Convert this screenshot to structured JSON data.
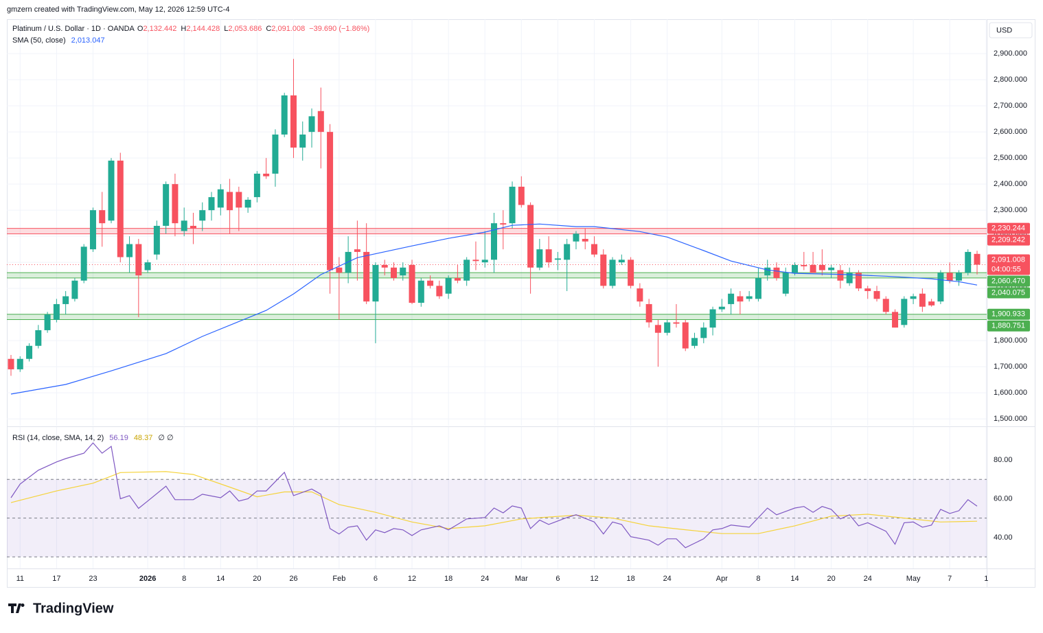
{
  "header": {
    "credit": "gmzern created with TradingView.com, May 12, 2026 12:59 UTC-4"
  },
  "chart_data": {
    "type": "candlestick",
    "title": "Platinum / U.S. Dollar · 1D · OANDA",
    "ohlc_legend": [
      {
        "key": "O",
        "value": "2,132.442"
      },
      {
        "key": "H",
        "value": "2,144.428"
      },
      {
        "key": "L",
        "value": "2,053.686"
      },
      {
        "key": "C",
        "value": "2,091.008"
      }
    ],
    "change": "−39.690 (−1.86%)",
    "currency": "USD",
    "up_color": "#22ab94",
    "down_color": "#f7525f",
    "open": [
      1730,
      1690,
      1730,
      1780,
      1840,
      1880,
      1940,
      1960,
      2030,
      2150,
      2300,
      2260,
      2490,
      2120,
      2170,
      2070,
      2130,
      2240,
      2400,
      2220,
      2240,
      2260,
      2300,
      2310,
      2370,
      2370,
      2310,
      2350,
      2440,
      2440,
      2590,
      2740,
      2540,
      2600,
      2680,
      2600,
      2080,
      2060,
      2150,
      2140,
      1950,
      2090,
      2080,
      2050,
      2090,
      1945,
      2030,
      2010,
      1980,
      2040,
      2030,
      2110,
      2100,
      2110,
      2250,
      2250,
      2390,
      2320,
      2080,
      2150,
      2110,
      2110,
      2180,
      2190,
      2170,
      2130,
      2010,
      2100,
      2110,
      2000,
      1940,
      1860,
      1830,
      1870,
      1870,
      1780,
      1810,
      1850,
      1920,
      1940,
      1970,
      1960,
      1960,
      2050,
      2080,
      1980,
      2060,
      2090,
      2090,
      2090,
      2070,
      2070,
      2020,
      2060,
      2000,
      1990,
      1960,
      1910,
      1860,
      1960,
      1980,
      1950,
      1950,
      2060,
      2030,
      2060,
      2132.442
    ],
    "high": [
      1745,
      1740,
      1790,
      1860,
      1910,
      1960,
      1990,
      2040,
      2170,
      2310,
      2370,
      2500,
      2520,
      2200,
      2190,
      2110,
      2260,
      2410,
      2440,
      2310,
      2290,
      2330,
      2370,
      2400,
      2420,
      2390,
      2350,
      2450,
      2500,
      2610,
      2750,
      2880,
      2640,
      2690,
      2770,
      2630,
      2120,
      2200,
      2260,
      2250,
      2100,
      2110,
      2100,
      2100,
      2110,
      2040,
      2050,
      2030,
      2050,
      2090,
      2120,
      2180,
      2220,
      2290,
      2300,
      2410,
      2430,
      2330,
      2190,
      2200,
      2140,
      2190,
      2220,
      2230,
      2200,
      2150,
      2120,
      2130,
      2120,
      2020,
      1960,
      1880,
      1880,
      1940,
      1880,
      1830,
      1870,
      1930,
      1960,
      2000,
      1990,
      1990,
      2080,
      2110,
      2100,
      2080,
      2100,
      2140,
      2140,
      2150,
      2090,
      2090,
      2080,
      2070,
      2010,
      2010,
      1970,
      1920,
      1970,
      1980,
      2000,
      1960,
      2070,
      2100,
      2070,
      2150,
      2144.428
    ],
    "low": [
      1665,
      1680,
      1720,
      1770,
      1830,
      1870,
      1900,
      1950,
      2020,
      2140,
      2160,
      2250,
      2100,
      2060,
      1890,
      2060,
      2110,
      2210,
      2200,
      2200,
      2170,
      2220,
      2260,
      2280,
      2210,
      2220,
      2290,
      2330,
      2420,
      2390,
      2580,
      2500,
      2490,
      2540,
      2460,
      1980,
      1880,
      2020,
      2030,
      1940,
      1790,
      2050,
      2030,
      2030,
      1940,
      1930,
      2000,
      1960,
      1960,
      2020,
      2010,
      2070,
      2080,
      2060,
      2150,
      2230,
      2310,
      1980,
      2070,
      2080,
      2070,
      1990,
      2150,
      2150,
      2120,
      2000,
      2000,
      2090,
      2000,
      1930,
      1850,
      1700,
      1820,
      1850,
      1760,
      1770,
      1790,
      1820,
      1910,
      1900,
      1900,
      1950,
      1950,
      2030,
      2030,
      1970,
      2050,
      2070,
      2060,
      2050,
      2040,
      2000,
      2010,
      1990,
      1960,
      1950,
      1900,
      1850,
      1850,
      1940,
      1910,
      1930,
      1940,
      2020,
      2010,
      2050,
      2053.686
    ],
    "close": [
      1690,
      1730,
      1780,
      1840,
      1900,
      1940,
      1970,
      2030,
      2160,
      2300,
      2250,
      2490,
      2120,
      2170,
      2050,
      2100,
      2240,
      2400,
      2250,
      2260,
      2230,
      2300,
      2350,
      2380,
      2300,
      2310,
      2340,
      2440,
      2430,
      2590,
      2740,
      2540,
      2590,
      2660,
      2600,
      2070,
      2060,
      2140,
      2140,
      1950,
      2090,
      2080,
      2040,
      2080,
      1945,
      2030,
      2010,
      1970,
      2040,
      2030,
      2110,
      2105,
      2110,
      2250,
      2245,
      2390,
      2320,
      2080,
      2150,
      2100,
      2115,
      2170,
      2210,
      2180,
      2130,
      2010,
      2110,
      2110,
      2010,
      1950,
      1870,
      1830,
      1870,
      1865,
      1770,
      1810,
      1850,
      1920,
      1930,
      1980,
      1950,
      1970,
      2040,
      2080,
      2040,
      2060,
      2090,
      2085,
      2060,
      2070,
      2080,
      2030,
      2060,
      2000,
      1990,
      1960,
      1910,
      1850,
      1960,
      1970,
      1930,
      1935,
      2060,
      2030,
      2060,
      2140,
      2091.008
    ],
    "sma": {
      "name": "SMA (50, close)",
      "value_label": "2,013.047",
      "color": "#2962ff",
      "x": [
        0,
        6,
        11,
        17,
        21,
        28,
        31,
        34,
        38,
        44,
        48,
        52,
        55,
        58,
        62,
        64,
        69,
        72,
        76,
        79,
        83,
        86,
        92,
        96,
        101,
        104,
        106
      ],
      "values": [
        1595,
        1632,
        1684,
        1750,
        1816,
        1916,
        1979,
        2053,
        2118,
        2163,
        2192,
        2216,
        2242,
        2247,
        2237,
        2237,
        2218,
        2197,
        2145,
        2105,
        2071,
        2058,
        2053,
        2047,
        2037,
        2026,
        2013.047
      ]
    },
    "last_price": {
      "value": 2091.008,
      "label": "2,091.008"
    },
    "countdown": "04:00:55",
    "zones": [
      {
        "top": {
          "value": 2230.244,
          "label": "2,230.244"
        },
        "bottom": {
          "value": 2209.242,
          "label": "2,209.242"
        },
        "color": "#f7525f"
      },
      {
        "top": {
          "value": 2060.47,
          "label": "2,060.470"
        },
        "bottom": {
          "value": 2040.075,
          "label": "2,040.075"
        },
        "color": "#4caf50"
      },
      {
        "top": {
          "value": 1900.933,
          "label": "1,900.933"
        },
        "bottom": {
          "value": 1880.751,
          "label": "1,880.751"
        },
        "color": "#4caf50"
      }
    ],
    "ylim": [
      1474,
      3032
    ],
    "yticks": [
      {
        "value": 1500,
        "label": "1,500.000"
      },
      {
        "value": 1600,
        "label": "1,600.000"
      },
      {
        "value": 1700,
        "label": "1,700.000"
      },
      {
        "value": 1800,
        "label": "1,800.000"
      },
      {
        "value": 1900,
        "label": "1,900.000"
      },
      {
        "value": 2000,
        "label": "2,000.000"
      },
      {
        "value": 2100,
        "label": "2,100.000"
      },
      {
        "value": 2200,
        "label": "2,200.000"
      },
      {
        "value": 2300,
        "label": "2,300.000"
      },
      {
        "value": 2400,
        "label": "2,400.000"
      },
      {
        "value": 2500,
        "label": "2,500.000"
      },
      {
        "value": 2600,
        "label": "2,600.000"
      },
      {
        "value": 2700,
        "label": "2,700.000"
      },
      {
        "value": 2800,
        "label": "2,800.000"
      },
      {
        "value": 2900,
        "label": "2,900.000"
      }
    ],
    "xticks": [
      {
        "value": 1,
        "label": "11"
      },
      {
        "value": 5,
        "label": "17"
      },
      {
        "value": 9,
        "label": "23"
      },
      {
        "value": 15,
        "label": "2026"
      },
      {
        "value": 19,
        "label": "8"
      },
      {
        "value": 23,
        "label": "14"
      },
      {
        "value": 27,
        "label": "20"
      },
      {
        "value": 31,
        "label": "26"
      },
      {
        "value": 36,
        "label": "Feb"
      },
      {
        "value": 40,
        "label": "6"
      },
      {
        "value": 44,
        "label": "12"
      },
      {
        "value": 48,
        "label": "18"
      },
      {
        "value": 52,
        "label": "24"
      },
      {
        "value": 56,
        "label": "Mar"
      },
      {
        "value": 60,
        "label": "6"
      },
      {
        "value": 64,
        "label": "12"
      },
      {
        "value": 68,
        "label": "18"
      },
      {
        "value": 72,
        "label": "24"
      },
      {
        "value": 78,
        "label": "Apr"
      },
      {
        "value": 82,
        "label": "8"
      },
      {
        "value": 86,
        "label": "14"
      },
      {
        "value": 90,
        "label": "20"
      },
      {
        "value": 94,
        "label": "24"
      },
      {
        "value": 99,
        "label": "May"
      },
      {
        "value": 103,
        "label": "7"
      },
      {
        "value": 107,
        "label": "1"
      }
    ],
    "grid": true,
    "rsi": {
      "name": "RSI (14, close, SMA, 14, 2)",
      "value_label": "56.19",
      "sma_value_label": "48.37",
      "extra": "∅ ∅",
      "color": "#7e57c2",
      "sma_color": "#f5d33a",
      "x": [
        0,
        1,
        3,
        5,
        6,
        8,
        9,
        10,
        11,
        12,
        13,
        14,
        15,
        17,
        18,
        20,
        21,
        23,
        24,
        25,
        26,
        27,
        28,
        30,
        31,
        33,
        34,
        35,
        36,
        37,
        38,
        39,
        40,
        41,
        42,
        43,
        44,
        45,
        47,
        48,
        49,
        50,
        52,
        53,
        54,
        55,
        56,
        57,
        58,
        59,
        61,
        62,
        64,
        65,
        66,
        67,
        68,
        70,
        71,
        72,
        73,
        74,
        76,
        77,
        78,
        79,
        81,
        83,
        84,
        86,
        87,
        88,
        89,
        90,
        91,
        92,
        93,
        94,
        96,
        97,
        98,
        99,
        100,
        101,
        102,
        103,
        104,
        105,
        106
      ],
      "values": [
        60.5,
        67.6,
        74.7,
        79,
        80.7,
        83.5,
        88.8,
        83.5,
        87,
        60,
        61.6,
        55,
        58.8,
        66.5,
        59.5,
        59.5,
        62.3,
        60.5,
        64,
        58.8,
        60,
        64,
        64,
        73.6,
        61.6,
        65,
        62.3,
        44.6,
        41.8,
        45.3,
        46,
        38.6,
        43.9,
        42.5,
        44.6,
        43.9,
        41,
        43.9,
        46,
        43.9,
        46.7,
        49.6,
        50.3,
        55.2,
        52.7,
        56.3,
        55.2,
        44.6,
        49,
        46.7,
        50.3,
        51.7,
        48,
        41.8,
        48,
        46.7,
        40.4,
        38.6,
        36,
        39.3,
        39.3,
        34.7,
        39.3,
        43.9,
        44.6,
        46.4,
        45.3,
        55.2,
        51.7,
        55.2,
        56,
        53,
        56,
        54.5,
        49.6,
        51.7,
        46,
        47.6,
        43.2,
        36.5,
        47.6,
        48,
        45.3,
        46.4,
        54.5,
        52.4,
        53.8,
        59.5,
        56.19
      ],
      "sma_x": [
        0,
        5,
        9,
        12,
        17,
        20,
        24,
        27,
        30,
        33,
        36,
        40,
        44,
        48,
        52,
        56,
        62,
        66,
        70,
        74,
        78,
        82,
        86,
        90,
        94,
        98,
        102,
        106
      ],
      "sma_values": [
        58,
        64,
        68,
        73.5,
        74,
        72.5,
        66,
        61,
        63.5,
        63.5,
        57,
        53,
        48,
        44.6,
        46,
        49.6,
        51.5,
        50,
        46,
        44,
        42,
        42,
        46,
        51,
        52,
        50,
        48,
        48.37
      ],
      "levels": [
        30,
        50,
        70
      ],
      "ylim": [
        24,
        97
      ],
      "yticks": [
        {
          "value": 40,
          "label": "40.00"
        },
        {
          "value": 60,
          "label": "60.00"
        },
        {
          "value": 80,
          "label": "80.00"
        }
      ]
    }
  },
  "footer": {
    "logo": "TradingView"
  }
}
